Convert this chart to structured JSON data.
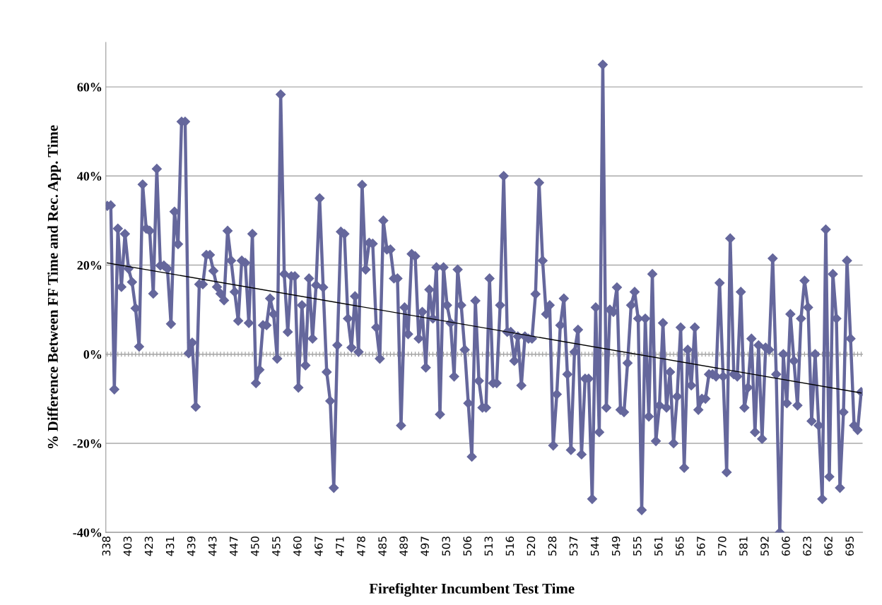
{
  "chart_data": {
    "type": "line",
    "xlabel": "Firefighter Incumbent Test Time",
    "ylabel": "% Difference Between FF Time and Rec. App. Time",
    "categories": [
      "338",
      null,
      null,
      null,
      null,
      null,
      "403",
      null,
      null,
      null,
      null,
      null,
      "423",
      null,
      null,
      null,
      null,
      null,
      "431",
      null,
      null,
      null,
      null,
      null,
      "439",
      null,
      null,
      null,
      null,
      null,
      "443",
      null,
      null,
      null,
      null,
      null,
      "447",
      null,
      null,
      null,
      null,
      null,
      "450",
      null,
      null,
      null,
      null,
      null,
      "455",
      null,
      null,
      null,
      null,
      null,
      "460",
      null,
      null,
      null,
      null,
      null,
      "467",
      null,
      null,
      null,
      null,
      null,
      "471",
      null,
      null,
      null,
      null,
      null,
      "478",
      null,
      null,
      null,
      null,
      null,
      "485",
      null,
      null,
      null,
      null,
      null,
      "489",
      null,
      null,
      null,
      null,
      null,
      "497",
      null,
      null,
      null,
      null,
      null,
      "503",
      null,
      null,
      null,
      null,
      null,
      "506",
      null,
      null,
      null,
      null,
      null,
      "513",
      null,
      null,
      null,
      null,
      null,
      "516",
      null,
      null,
      null,
      null,
      null,
      "520",
      null,
      null,
      null,
      null,
      null,
      "528",
      null,
      null,
      null,
      null,
      null,
      "537",
      null,
      null,
      null,
      null,
      null,
      "544",
      null,
      null,
      null,
      null,
      null,
      "549",
      null,
      null,
      null,
      null,
      null,
      "555",
      null,
      null,
      null,
      null,
      null,
      "561",
      null,
      null,
      null,
      null,
      null,
      "565",
      null,
      null,
      null,
      null,
      null,
      "567",
      null,
      null,
      null,
      null,
      null,
      "570",
      null,
      null,
      null,
      null,
      null,
      "581",
      null,
      null,
      null,
      null,
      null,
      "592",
      null,
      null,
      null,
      null,
      null,
      "606",
      null,
      null,
      null,
      null,
      null,
      "623",
      null,
      null,
      null,
      null,
      null,
      "662",
      null,
      null,
      null,
      null,
      null,
      "695",
      null,
      null,
      null
    ],
    "series": [
      {
        "color": "#65679c",
        "marker": "diamond",
        "values": [
          33.3,
          33.4,
          -7.9,
          28.2,
          15.1,
          27,
          19.2,
          16.2,
          10.3,
          1.7,
          38.1,
          28.2,
          27.7,
          13.6,
          41.6,
          19.9,
          19.9,
          19.2,
          6.8,
          32,
          24.7,
          52.2,
          52.2,
          0.2,
          2.6,
          -11.8,
          15.7,
          15.7,
          22.3,
          22.3,
          18.7,
          15.1,
          13.6,
          12.1,
          27.7,
          21,
          14,
          7.5,
          21,
          20.5,
          7,
          27,
          -6.5,
          -3.5,
          6.5,
          6.5,
          12.5,
          9,
          -1,
          58.3,
          18,
          5,
          17.5,
          17.5,
          -7.5,
          11,
          -2.5,
          17,
          3.5,
          15.5,
          35,
          15,
          -4,
          -10.5,
          -30,
          2,
          27.5,
          27,
          8,
          1.5,
          13,
          0.5,
          38,
          19,
          25,
          24.8,
          6,
          -1,
          30,
          23.5,
          23.5,
          17,
          17,
          -16,
          10.5,
          4.5,
          22.5,
          22,
          3.5,
          9.5,
          -3,
          14.5,
          8,
          19.5,
          -13.5,
          19.5,
          11,
          7,
          -5,
          19,
          11,
          1,
          -11,
          -23,
          12,
          -6,
          -12,
          -12,
          17,
          -6.5,
          -6.5,
          11,
          40,
          5,
          5,
          -1.5,
          4,
          -7,
          4,
          3.5,
          3.5,
          13.5,
          38.5,
          21,
          9,
          11,
          -20.5,
          -9,
          6.5,
          12.5,
          -4.5,
          -21.5,
          0.5,
          5.5,
          -22.5,
          -5.5,
          -5.5,
          -32.5,
          10.5,
          -17.5,
          65,
          -12,
          10,
          9.5,
          15,
          -12.5,
          -13,
          -2,
          11,
          14,
          8,
          -35,
          8,
          -14,
          18,
          -19.5,
          -11.5,
          7,
          -12,
          -4,
          -20,
          -9.5,
          6,
          -25.5,
          1,
          -7,
          6,
          -12.5,
          -10,
          -10,
          -4.5,
          -4.5,
          -5,
          16,
          -5,
          -26.5,
          26,
          -4.5,
          -5,
          14,
          -12,
          -7.5,
          3.5,
          -17.5,
          2,
          -19,
          1.5,
          1,
          21.5,
          -4.5,
          -40,
          0,
          -11,
          9,
          -1.5,
          -11.5,
          8,
          16.5,
          10.5,
          -15,
          0,
          -16,
          -32.5,
          28,
          -27.5,
          18,
          8,
          -30,
          -13,
          21,
          3.5,
          -16,
          -17,
          -8.5
        ]
      },
      {
        "color": "#000000",
        "marker": "none",
        "values": [
          20.5,
          null,
          null,
          null,
          null,
          null,
          null,
          null,
          null,
          null,
          null,
          null,
          null,
          null,
          null,
          null,
          null,
          null,
          null,
          null,
          null,
          null,
          null,
          null,
          null,
          null,
          null,
          null,
          null,
          null,
          null,
          null,
          null,
          null,
          null,
          null,
          null,
          null,
          null,
          null,
          null,
          null,
          null,
          null,
          null,
          null,
          null,
          null,
          null,
          null,
          null,
          null,
          null,
          null,
          null,
          null,
          null,
          null,
          null,
          null,
          null,
          null,
          null,
          null,
          null,
          null,
          null,
          null,
          null,
          null,
          null,
          null,
          null,
          null,
          null,
          null,
          null,
          null,
          null,
          null,
          null,
          null,
          null,
          null,
          null,
          null,
          null,
          null,
          null,
          null,
          null,
          null,
          null,
          null,
          null,
          null,
          null,
          null,
          null,
          null,
          null,
          null,
          null,
          null,
          null,
          null,
          null,
          null,
          null,
          null,
          null,
          null,
          null,
          null,
          null,
          null,
          null,
          null,
          null,
          null,
          null,
          null,
          null,
          null,
          null,
          null,
          null,
          null,
          null,
          null,
          null,
          null,
          null,
          null,
          null,
          null,
          null,
          null,
          null,
          null,
          null,
          null,
          null,
          null,
          null,
          null,
          null,
          null,
          null,
          null,
          null,
          null,
          null,
          null,
          null,
          null,
          null,
          null,
          null,
          null,
          null,
          null,
          null,
          null,
          null,
          null,
          null,
          null,
          null,
          null,
          null,
          null,
          null,
          null,
          null,
          null,
          null,
          null,
          null,
          null,
          null,
          null,
          null,
          null,
          null,
          null,
          null,
          null,
          null,
          null,
          null,
          null,
          null,
          null,
          null,
          null,
          null,
          null,
          null,
          null,
          null,
          null,
          null,
          null,
          null,
          null,
          null,
          null,
          null,
          null,
          null,
          null,
          null,
          -8.7
        ]
      }
    ],
    "ylim": [
      -40,
      70
    ],
    "yticks": [
      {
        "value": -40,
        "label": "-40%"
      },
      {
        "value": -20,
        "label": "-20%"
      },
      {
        "value": 0,
        "label": "0%"
      },
      {
        "value": 20,
        "label": "20%"
      },
      {
        "value": 40,
        "label": "40%"
      },
      {
        "value": 60,
        "label": "60%"
      }
    ],
    "grid": "y",
    "legend": false,
    "line_style": "solid"
  }
}
